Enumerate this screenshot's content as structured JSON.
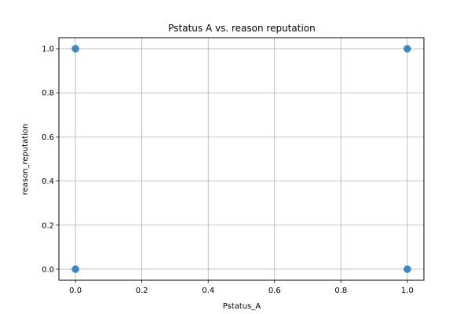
{
  "chart_data": {
    "type": "scatter",
    "title": "Pstatus A vs. reason reputation",
    "xlabel": "Pstatus_A",
    "ylabel": "reason_reputation",
    "xlim": [
      -0.05,
      1.05
    ],
    "ylim": [
      -0.05,
      1.05
    ],
    "xticks": [
      "0.0",
      "0.2",
      "0.4",
      "0.6",
      "0.8",
      "1.0"
    ],
    "yticks": [
      "0.0",
      "0.2",
      "0.4",
      "0.6",
      "0.8",
      "1.0"
    ],
    "grid": true,
    "series": [
      {
        "color": "#1f77b4",
        "points": [
          {
            "x": 0,
            "y": 1
          },
          {
            "x": 1,
            "y": 1
          },
          {
            "x": 0,
            "y": 0
          },
          {
            "x": 1,
            "y": 0
          }
        ]
      }
    ]
  }
}
